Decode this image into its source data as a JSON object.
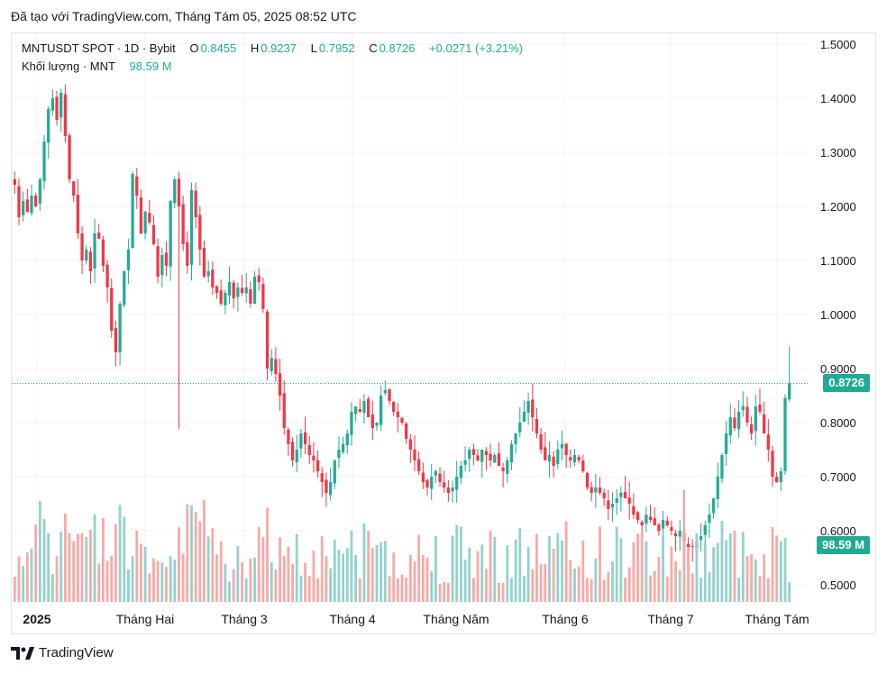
{
  "header": {
    "text": "Đã tạo với TradingView.com, Tháng Tám 05, 2025 08:52 UTC"
  },
  "legend": {
    "symbol": "MNTUSDT SPOT · 1D · Bybit",
    "o_label": "O",
    "o_value": "0.8455",
    "h_label": "H",
    "h_value": "0.9237",
    "l_label": "L",
    "l_value": "0.7952",
    "c_label": "C",
    "c_value": "0.8726",
    "change": "+0.0271 (+3.21%)",
    "volume_label": "Khối lượng · MNT",
    "volume_value": "98.59 M"
  },
  "price_tag": "0.8726",
  "volume_tag": "98.59 M",
  "footer": {
    "brand": "TradingView"
  },
  "colors": {
    "up": "#22ab94",
    "down": "#f23645",
    "up_vol": "#92d2cc",
    "down_vol": "#f7a9a7",
    "grid": "#f0f3fa",
    "text": "#131722"
  },
  "chart_data": {
    "type": "candlestick",
    "x_ticks": [
      "2025",
      "Tháng Hai",
      "Tháng 3",
      "Tháng 4",
      "Tháng Năm",
      "Tháng 6",
      "Tháng 7",
      "Tháng Tám"
    ],
    "y_ticks": [
      "1.5000",
      "1.4000",
      "1.3000",
      "1.2000",
      "1.1000",
      "1.0000",
      "0.9000",
      "0.8000",
      "0.7000",
      "0.6000",
      "0.5000"
    ],
    "ylim": [
      0.47,
      1.52
    ],
    "last_close": 0.8726,
    "closes": [
      1.24,
      1.18,
      1.21,
      1.19,
      1.22,
      1.2,
      1.25,
      1.32,
      1.38,
      1.4,
      1.36,
      1.41,
      1.33,
      1.25,
      1.22,
      1.15,
      1.1,
      1.12,
      1.08,
      1.15,
      1.14,
      1.09,
      1.05,
      0.97,
      0.93,
      1.02,
      1.08,
      1.12,
      1.26,
      1.22,
      1.15,
      1.19,
      1.17,
      1.13,
      1.07,
      1.11,
      1.09,
      1.21,
      1.25,
      1.2,
      1.13,
      1.09,
      1.23,
      1.18,
      1.12,
      1.07,
      1.08,
      1.05,
      1.04,
      1.02,
      1.04,
      1.06,
      1.03,
      1.05,
      1.04,
      1.05,
      1.02,
      1.07,
      1.06,
      1.01,
      0.9,
      0.92,
      0.89,
      0.85,
      0.79,
      0.76,
      0.73,
      0.75,
      0.78,
      0.76,
      0.74,
      0.73,
      0.71,
      0.69,
      0.67,
      0.69,
      0.73,
      0.75,
      0.76,
      0.78,
      0.82,
      0.83,
      0.82,
      0.84,
      0.81,
      0.79,
      0.8,
      0.85,
      0.86,
      0.84,
      0.82,
      0.81,
      0.8,
      0.77,
      0.75,
      0.73,
      0.71,
      0.69,
      0.68,
      0.7,
      0.71,
      0.69,
      0.68,
      0.67,
      0.68,
      0.7,
      0.72,
      0.73,
      0.75,
      0.74,
      0.73,
      0.75,
      0.74,
      0.73,
      0.74,
      0.72,
      0.71,
      0.73,
      0.76,
      0.78,
      0.8,
      0.82,
      0.84,
      0.81,
      0.78,
      0.75,
      0.73,
      0.74,
      0.72,
      0.75,
      0.76,
      0.74,
      0.73,
      0.74,
      0.73,
      0.71,
      0.68,
      0.67,
      0.68,
      0.67,
      0.66,
      0.64,
      0.65,
      0.66,
      0.67,
      0.66,
      0.65,
      0.63,
      0.62,
      0.61,
      0.63,
      0.62,
      0.61,
      0.6,
      0.62,
      0.61,
      0.6,
      0.59,
      0.6,
      0.58,
      0.57,
      0.57,
      0.58,
      0.59,
      0.61,
      0.63,
      0.66,
      0.7,
      0.74,
      0.78,
      0.81,
      0.79,
      0.82,
      0.83,
      0.8,
      0.78,
      0.83,
      0.82,
      0.78,
      0.75,
      0.7,
      0.69,
      0.71,
      0.8455,
      0.8726
    ]
  }
}
